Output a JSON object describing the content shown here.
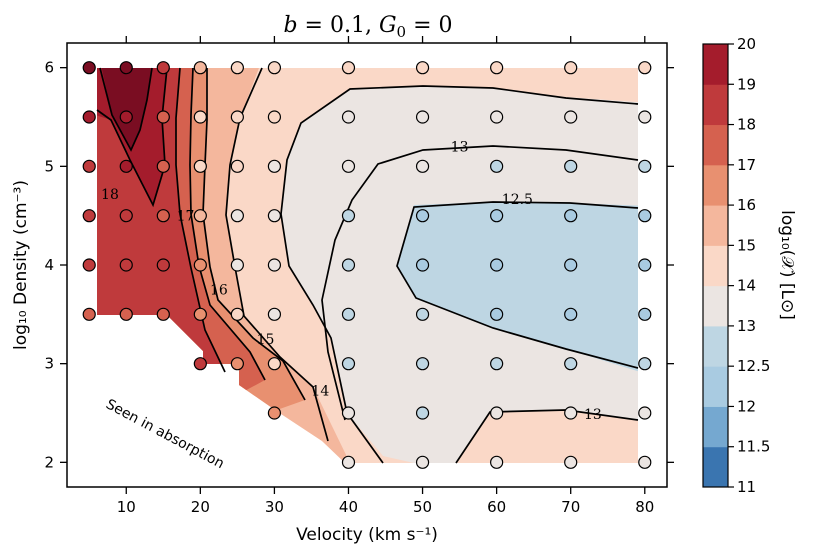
{
  "chart_data": {
    "type": "contour",
    "title_parts": [
      "b",
      " = 0.1, ",
      "G",
      "0",
      " = 0"
    ],
    "xlabel": "Velocity (km s⁻¹)",
    "ylabel": "log₁₀ Density (cm⁻³)",
    "xlim": [
      2,
      83
    ],
    "ylim": [
      1.75,
      6.25
    ],
    "xticks": [
      10,
      20,
      30,
      40,
      50,
      60,
      70,
      80
    ],
    "yticks": [
      2,
      3,
      4,
      5,
      6
    ],
    "colorbar": {
      "label": "log₁₀(𝒳) [L⊙]",
      "min": 11,
      "max": 20,
      "ticks": [
        "11",
        "11.5",
        "12",
        "12.5",
        "13",
        "14",
        "15",
        "16",
        "17",
        "18",
        "19",
        "20"
      ],
      "levels": [
        11,
        11.5,
        12,
        12.5,
        13,
        14,
        15,
        16,
        17,
        18,
        19,
        20
      ],
      "colors": [
        "#3a75b0",
        "#75a8d0",
        "#a9cbe1",
        "#bed6e3",
        "#ebe5e2",
        "#fad8c7",
        "#f4b79d",
        "#e89070",
        "#d5614f",
        "#bf3a3c",
        "#a41c2c",
        "#7a0d22"
      ]
    },
    "contour_labels": [
      {
        "text": "13",
        "x": 55.0,
        "y": 5.2
      },
      {
        "text": "12.5",
        "x": 62.8,
        "y": 4.67
      },
      {
        "text": "18",
        "x": 7.8,
        "y": 4.72
      },
      {
        "text": "17",
        "x": 18.0,
        "y": 4.5
      },
      {
        "text": "16",
        "x": 22.5,
        "y": 3.75
      },
      {
        "text": "15",
        "x": 28.8,
        "y": 3.25
      },
      {
        "text": "14",
        "x": 36.2,
        "y": 2.73
      },
      {
        "text": "13",
        "x": 73.0,
        "y": 2.49
      }
    ],
    "annotation": "Seen in absorption",
    "sample_points": {
      "x": [
        5,
        10,
        15,
        20,
        25,
        30,
        40,
        50,
        60,
        70,
        80
      ],
      "y": [
        2,
        2.5,
        3,
        3.5,
        4,
        4.5,
        5,
        5.5,
        6
      ],
      "point_values": {
        "6.0": [
          20,
          20,
          18,
          15,
          14,
          14,
          14,
          14,
          14,
          14,
          14
        ],
        "5.5": [
          19,
          19,
          17,
          14,
          14,
          14,
          13,
          13,
          13,
          13,
          13
        ],
        "5.0": [
          18,
          19,
          17,
          14,
          14,
          13,
          13,
          13,
          12.5,
          12.5,
          12.5
        ],
        "4.5": [
          18,
          18,
          17,
          15,
          13,
          13,
          12.5,
          12,
          12,
          12,
          12
        ],
        "4.0": [
          18,
          18,
          18,
          16,
          13,
          13,
          12.5,
          12,
          12,
          12,
          12
        ],
        "3.5": [
          17,
          17,
          17,
          16,
          14,
          13,
          12.5,
          12.5,
          12,
          12,
          12
        ],
        "3.0": [
          null,
          null,
          null,
          18,
          16,
          14,
          12.5,
          12.5,
          12.5,
          12.5,
          12.5
        ],
        "2.5": [
          null,
          null,
          null,
          null,
          null,
          16,
          13,
          12.5,
          13,
          13,
          13
        ],
        "2.0": [
          null,
          null,
          null,
          null,
          null,
          null,
          13,
          13,
          13,
          13,
          13
        ]
      }
    }
  }
}
